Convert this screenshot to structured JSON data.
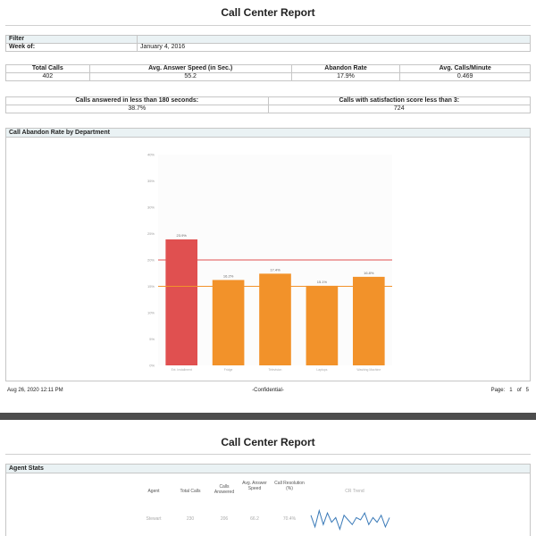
{
  "page1": {
    "title": "Call Center Report",
    "filter": {
      "header": "Filter",
      "week_label": "Week of:",
      "week_value": "January 4, 2016"
    },
    "kpis": [
      {
        "label": "Total Calls",
        "value": "402"
      },
      {
        "label": "Avg. Answer Speed (in Sec.)",
        "value": "55.2"
      },
      {
        "label": "Abandon Rate",
        "value": "17.9%"
      },
      {
        "label": "Avg. Calls/Minute",
        "value": "0.469"
      }
    ],
    "kpis2": [
      {
        "label": "Calls answered in less than 180 seconds:",
        "value": "38.7%"
      },
      {
        "label": "Calls with satisfaction score less than 3:",
        "value": "724"
      }
    ],
    "chart_panel_title": "Call Abandon Rate by Department",
    "footer": {
      "date": "Aug 26, 2020 12:11 PM",
      "confidential": "-Confidential-",
      "page_label": "Page:",
      "page_num": "1",
      "of_label": "of",
      "page_total": "5"
    }
  },
  "page2": {
    "title": "Call Center Report",
    "section": "Agent Stats",
    "columns": [
      "Agent",
      "Total Calls",
      "Calls Answered",
      "Avg. Answer Speed",
      "Call Resolution (%)",
      "CR Trend"
    ],
    "row": {
      "agent": "Stewart",
      "total": "230",
      "answered": "206",
      "speed": "66.2",
      "resolution": "70.4%"
    }
  },
  "chart_data": {
    "type": "bar",
    "title": "",
    "categories": [
      "Ext. Installment",
      "Fridge",
      "Television",
      "Laptops",
      "Washing Machine"
    ],
    "values": [
      23.9,
      16.2,
      17.4,
      15.1,
      16.8
    ],
    "bar_colors": [
      "#e05050",
      "#f2922a",
      "#f2922a",
      "#f2922a",
      "#f2922a"
    ],
    "data_labels": [
      "23.9%",
      "16.2%",
      "17.4%",
      "15.1%",
      "16.8%"
    ],
    "y_ticks": [
      "0%",
      "5%",
      "10%",
      "15%",
      "20%",
      "25%",
      "30%",
      "35%",
      "40%"
    ],
    "ylim": [
      0,
      40
    ],
    "reference_lines": [
      {
        "value": 20,
        "color": "#e05050"
      },
      {
        "value": 15,
        "color": "#f2922a"
      }
    ],
    "grid": false
  },
  "sparkline": [
    0.7,
    0.2,
    0.9,
    0.3,
    0.8,
    0.4,
    0.6,
    0.1,
    0.7,
    0.5,
    0.3,
    0.6,
    0.5,
    0.8,
    0.3,
    0.6,
    0.4,
    0.7,
    0.2,
    0.6
  ]
}
